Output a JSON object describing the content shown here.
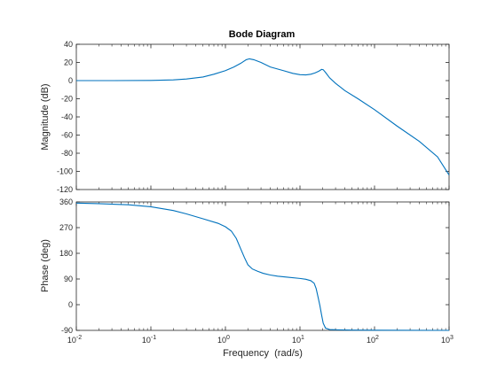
{
  "chart_data": {
    "type": "line",
    "title": "Bode Diagram",
    "xlabel": "Frequency  (rad/s)",
    "xscale": "log",
    "xlim": [
      0.01,
      1000
    ],
    "x_ticks": [
      {
        "base": "10",
        "exp": "-2",
        "value": 0.01
      },
      {
        "base": "10",
        "exp": "-1",
        "value": 0.1
      },
      {
        "base": "10",
        "exp": "0",
        "value": 1
      },
      {
        "base": "10",
        "exp": "1",
        "value": 10
      },
      {
        "base": "10",
        "exp": "2",
        "value": 100
      },
      {
        "base": "10",
        "exp": "3",
        "value": 1000
      }
    ],
    "line_color": "#0072BD",
    "grid": false,
    "magnitude": {
      "ylabel": "Magnitude (dB)",
      "ylim": [
        -120,
        40
      ],
      "yticks": [
        40,
        20,
        0,
        -20,
        -40,
        -60,
        -80,
        -100,
        -120
      ],
      "x": [
        0.01,
        0.03,
        0.1,
        0.2,
        0.3,
        0.5,
        0.7,
        1.0,
        1.3,
        1.6,
        1.9,
        2.1,
        2.4,
        3.0,
        4.0,
        6.0,
        8.0,
        10.0,
        12.0,
        14.0,
        16.0,
        18.0,
        19.5,
        20.5,
        22.0,
        25.0,
        30.0,
        40.0,
        60.0,
        100.0,
        200.0,
        400.0,
        700.0,
        1000.0
      ],
      "y": [
        0,
        0,
        0.2,
        0.8,
        1.8,
        4,
        7,
        11,
        15,
        19,
        23,
        24,
        23,
        20,
        15,
        11,
        8,
        6.5,
        6.3,
        7,
        8.5,
        10.5,
        12.3,
        12,
        9,
        3,
        -3,
        -11,
        -20,
        -32,
        -50,
        -67,
        -84,
        -104
      ]
    },
    "phase": {
      "ylabel": "Phase (deg)",
      "ylim": [
        -90,
        360
      ],
      "yticks": [
        360,
        270,
        180,
        90,
        0,
        -90
      ],
      "x": [
        0.01,
        0.02,
        0.05,
        0.1,
        0.2,
        0.3,
        0.5,
        0.8,
        1.0,
        1.2,
        1.4,
        1.6,
        1.8,
        2.0,
        2.3,
        2.7,
        3.2,
        4.0,
        5.0,
        7.0,
        10.0,
        12.0,
        14.0,
        15.5,
        16.5,
        17.5,
        18.5,
        19.5,
        20.5,
        22.0,
        25.0,
        30.0,
        50.0,
        100.0,
        1000.0
      ],
      "y": [
        356,
        354,
        350,
        343,
        330,
        318,
        301,
        285,
        273,
        258,
        232,
        196,
        165,
        140,
        125,
        117,
        110,
        104,
        100,
        96,
        92,
        89,
        84,
        75,
        56,
        26,
        -3,
        -36,
        -65,
        -82,
        -87,
        -88,
        -89,
        -89.5,
        -90
      ]
    }
  }
}
